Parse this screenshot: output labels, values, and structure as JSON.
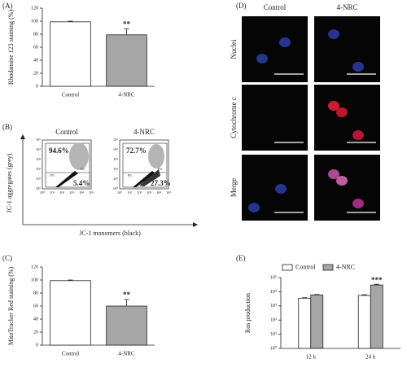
{
  "chart_data": [
    {
      "type": "bar",
      "panel_label": "(A)",
      "y_label": "Rhodamine 123 staining (%)",
      "categories": [
        "Control",
        "4-NRC"
      ],
      "values": [
        99,
        79
      ],
      "errors": [
        1,
        9
      ],
      "colors": [
        "#ffffff",
        "#a6a6a6"
      ],
      "annotation": {
        "text": "**",
        "category": "4-NRC"
      },
      "ylim": [
        0,
        120
      ],
      "yticks": [
        0,
        20,
        40,
        60,
        80,
        100,
        120
      ]
    },
    {
      "type": "bar",
      "panel_label": "(C)",
      "y_label": "MitoTracker Red staining (%)",
      "categories": [
        "Control",
        "4-NRC"
      ],
      "values": [
        99,
        60
      ],
      "errors": [
        1,
        10
      ],
      "colors": [
        "#ffffff",
        "#a6a6a6"
      ],
      "annotation": {
        "text": "**",
        "category": "4-NRC"
      },
      "ylim": [
        0,
        120
      ],
      "yticks": [
        0,
        20,
        40,
        60,
        80,
        100,
        120
      ]
    },
    {
      "type": "bar",
      "panel_label": "(E)",
      "y_label": "Ros production",
      "log_scale": true,
      "categories": [
        "12 h",
        "24 h"
      ],
      "series": [
        {
          "name": "Control",
          "color": "#ffffff",
          "values": [
            3500,
            5500
          ],
          "errors": [
            300,
            600
          ]
        },
        {
          "name": "4-NRC",
          "color": "#a6a6a6",
          "values": [
            6000,
            30000
          ],
          "errors": [
            400,
            4000
          ]
        }
      ],
      "annotation": {
        "text": "***",
        "series": "4-NRC",
        "category": "24 h"
      },
      "ylim": [
        1,
        100000
      ],
      "yticks": [
        {
          "value": 1,
          "label": "10⁰"
        },
        {
          "value": 10,
          "label": "10¹"
        },
        {
          "value": 100,
          "label": "10²"
        },
        {
          "value": 1000,
          "label": "10³"
        },
        {
          "value": 10000,
          "label": "10⁴"
        },
        {
          "value": 100000,
          "label": "10⁵"
        }
      ]
    }
  ],
  "flow_panel": {
    "panel_label": "(B)",
    "y_label": "JC-1 aggregates (grey)",
    "x_label": "JC-1 monomers (black)",
    "gate_labels": [
      "P4",
      "P5"
    ],
    "tick_labels": [
      "10⁰",
      "10¹",
      "10²",
      "10³",
      "10⁴",
      "10⁵"
    ],
    "plots": [
      {
        "title": "Control",
        "upper_percent": "94.6%",
        "lower_percent": "5.4%"
      },
      {
        "title": "4-NRC",
        "upper_percent": "72.7%",
        "lower_percent": "27.3%"
      }
    ]
  },
  "image_panel": {
    "panel_label": "(D)",
    "columns": [
      "Control",
      "4-NRC"
    ],
    "rows": [
      "Nuclei",
      "Cytochrome c",
      "Merge"
    ]
  }
}
